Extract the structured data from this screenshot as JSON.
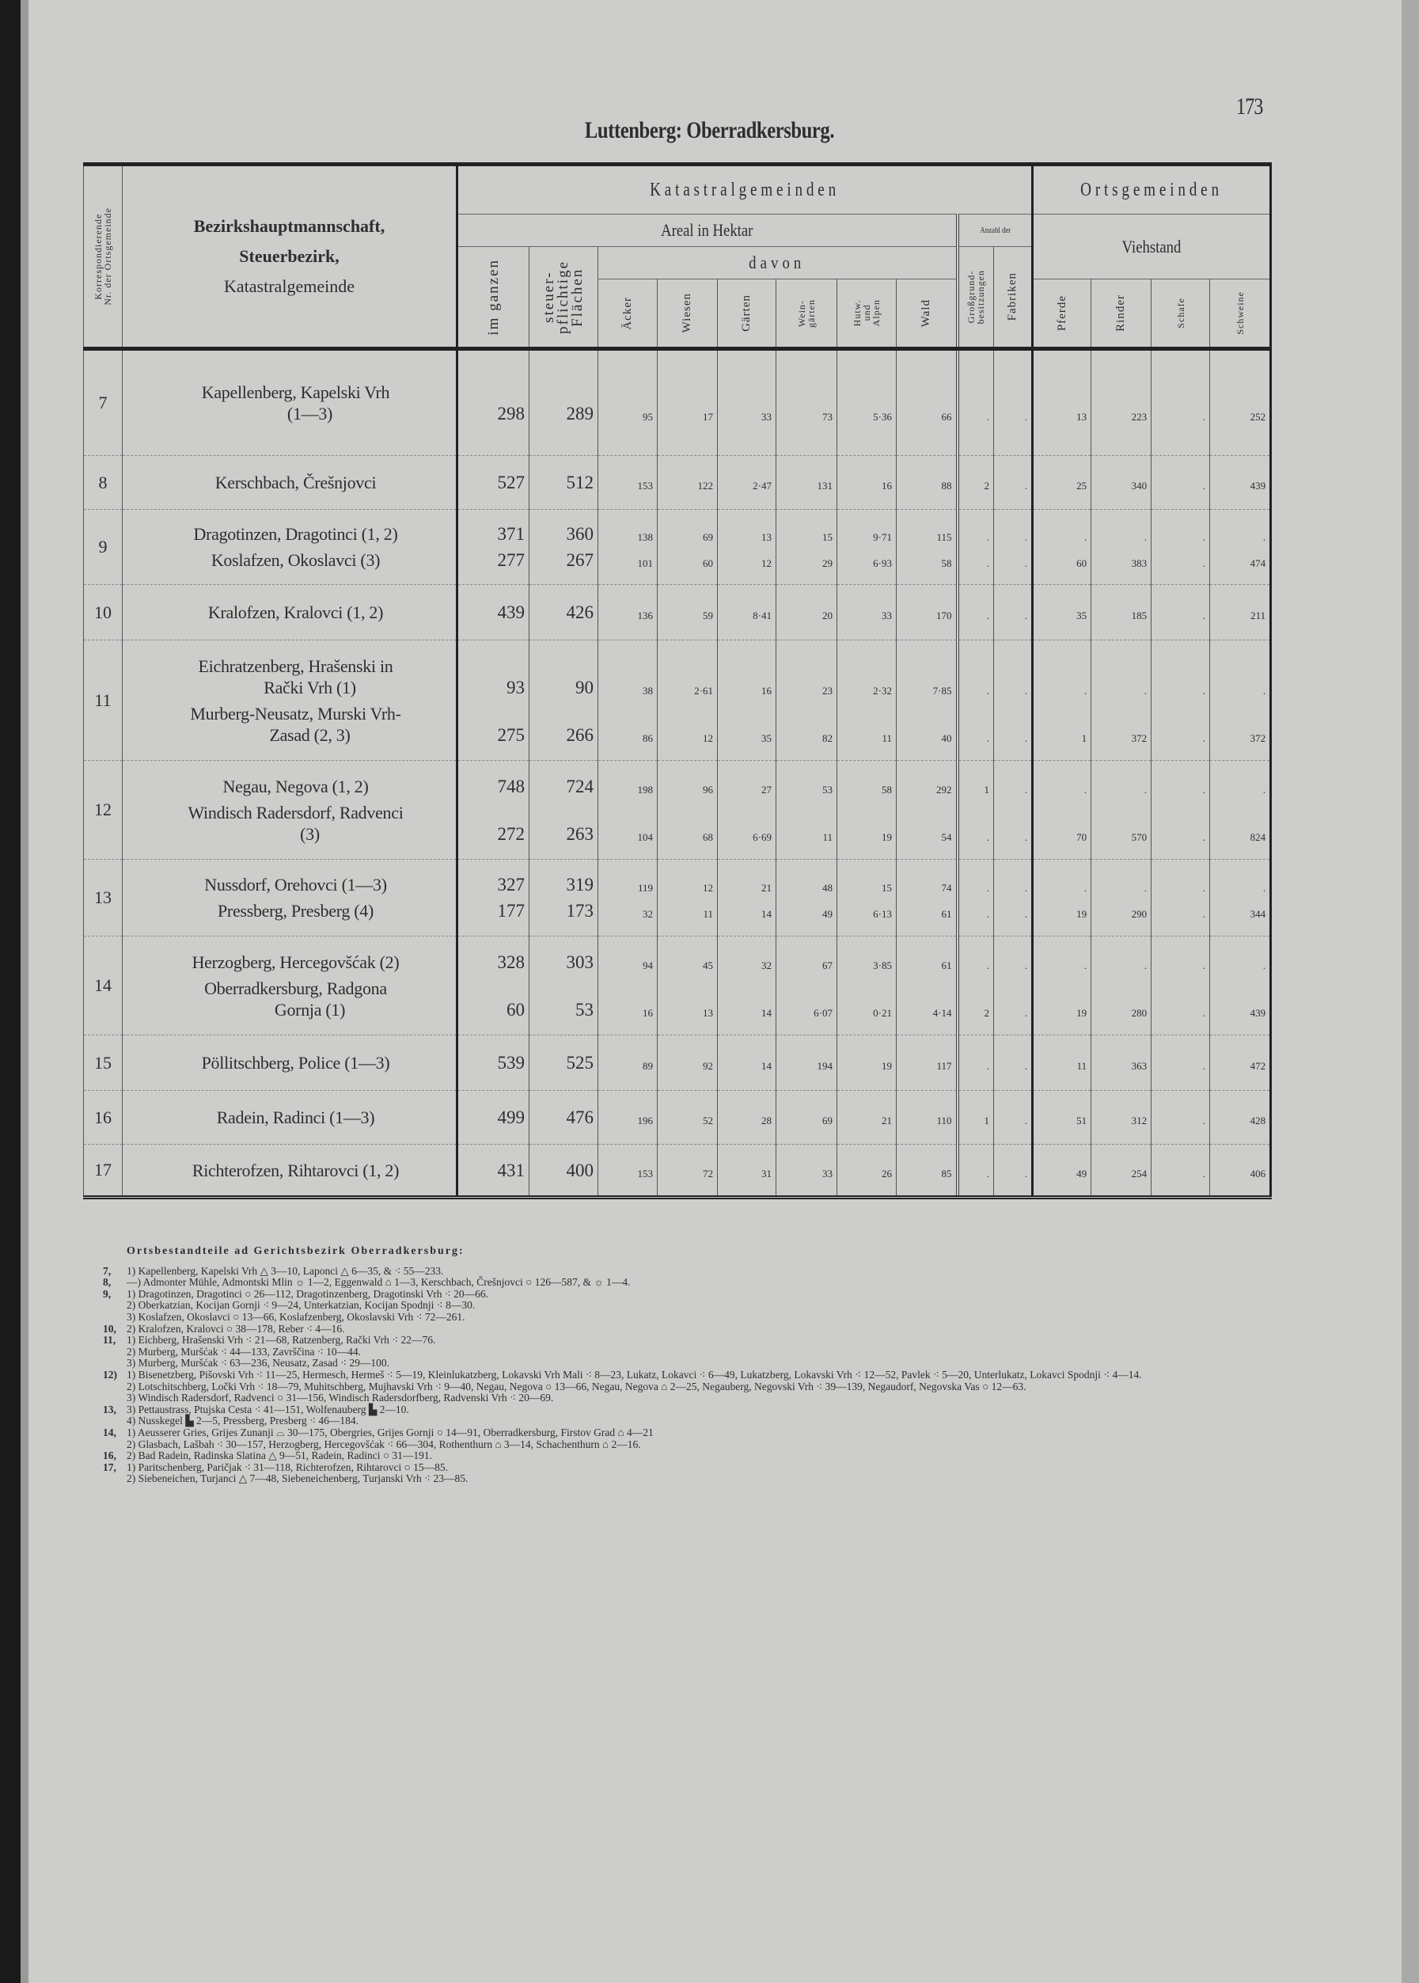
{
  "page": {
    "title": "Luttenberg: Oberradkersburg.",
    "number": "173"
  },
  "table": {
    "header": {
      "nr_col": "Korrespondierende\nNr. der Ortsgemeinde",
      "name_col": [
        "Bezirkshauptmannschaft,",
        "Steuerbezirk,",
        "Katastralgemeinde"
      ],
      "group_kat": "Katastralgemeinden",
      "group_ort": "Ortsgemeinden",
      "areal": "Areal in Hektar",
      "anzahl": "Anzahl der",
      "davon": "davon",
      "viehstand": "Viehstand",
      "columns": [
        "im ganzen",
        "steuer-\npflichtige\nFlächen",
        "Äcker",
        "Wiesen",
        "Gärten",
        "Wein-\ngärten",
        "Hutw.\nund\nAlpen",
        "Wald",
        "Großgrund-\nbesitzungen",
        "Fabriken",
        "Pferde",
        "Rinder",
        "Schafe",
        "Schweine"
      ]
    },
    "rows": [
      {
        "nr": "7",
        "entries": [
          {
            "name_lines": [
              "Kapellenberg, Kapelski Vrh",
              "(1—3)"
            ],
            "values": [
              "298",
              "289",
              "95",
              "17",
              "33",
              "73",
              "5·36",
              "66",
              ".",
              ".",
              "13",
              "223",
              ".",
              "252"
            ]
          }
        ]
      },
      {
        "nr": "8",
        "entries": [
          {
            "name_lines": [
              "Kerschbach, Črešnjovci"
            ],
            "values": [
              "527",
              "512",
              "153",
              "122",
              "2·47",
              "131",
              "16",
              "88",
              "2",
              ".",
              "25",
              "340",
              ".",
              "439"
            ]
          }
        ]
      },
      {
        "nr": "9",
        "entries": [
          {
            "name_lines": [
              "Dragotinzen, Dragotinci (1, 2)"
            ],
            "values": [
              "371",
              "360",
              "138",
              "69",
              "13",
              "15",
              "9·71",
              "115",
              ".",
              ".",
              ".",
              ".",
              ".",
              "."
            ]
          },
          {
            "name_lines": [
              "Koslafzen, Okoslavci (3)"
            ],
            "values": [
              "277",
              "267",
              "101",
              "60",
              "12",
              "29",
              "6·93",
              "58",
              ".",
              ".",
              "60",
              "383",
              ".",
              "474"
            ]
          }
        ]
      },
      {
        "nr": "10",
        "entries": [
          {
            "name_lines": [
              "Kralofzen, Kralovci (1, 2)"
            ],
            "values": [
              "439",
              "426",
              "136",
              "59",
              "8·41",
              "20",
              "33",
              "170",
              ".",
              ".",
              "35",
              "185",
              ".",
              "211"
            ]
          }
        ]
      },
      {
        "nr": "11",
        "entries": [
          {
            "name_lines": [
              "Eichratzenberg, Hrašenski in",
              "Rački Vrh (1)"
            ],
            "values": [
              "93",
              "90",
              "38",
              "2·61",
              "16",
              "23",
              "2·32",
              "7·85",
              ".",
              ".",
              ".",
              ".",
              ".",
              "."
            ]
          },
          {
            "name_lines": [
              "Murberg-Neusatz, Murski Vrh-",
              "Zasad (2, 3)"
            ],
            "values": [
              "275",
              "266",
              "86",
              "12",
              "35",
              "82",
              "11",
              "40",
              ".",
              ".",
              "1",
              "372",
              ".",
              "372"
            ]
          }
        ]
      },
      {
        "nr": "12",
        "entries": [
          {
            "name_lines": [
              "Negau, Negova (1, 2)"
            ],
            "values": [
              "748",
              "724",
              "198",
              "96",
              "27",
              "53",
              "58",
              "292",
              "1",
              ".",
              ".",
              ".",
              ".",
              "."
            ]
          },
          {
            "name_lines": [
              "Windisch Radersdorf, Radvenci",
              "(3)"
            ],
            "values": [
              "272",
              "263",
              "104",
              "68",
              "6·69",
              "11",
              "19",
              "54",
              ".",
              ".",
              "70",
              "570",
              ".",
              "824"
            ]
          }
        ]
      },
      {
        "nr": "13",
        "entries": [
          {
            "name_lines": [
              "Nussdorf, Orehovci (1—3)"
            ],
            "values": [
              "327",
              "319",
              "119",
              "12",
              "21",
              "48",
              "15",
              "74",
              ".",
              ".",
              ".",
              ".",
              ".",
              "."
            ]
          },
          {
            "name_lines": [
              "Pressberg, Presberg (4)"
            ],
            "values": [
              "177",
              "173",
              "32",
              "11",
              "14",
              "49",
              "6·13",
              "61",
              ".",
              ".",
              "19",
              "290",
              ".",
              "344"
            ]
          }
        ]
      },
      {
        "nr": "14",
        "entries": [
          {
            "name_lines": [
              "Herzogberg, Hercegovšćak (2)"
            ],
            "values": [
              "328",
              "303",
              "94",
              "45",
              "32",
              "67",
              "3·85",
              "61",
              ".",
              ".",
              ".",
              ".",
              ".",
              "."
            ]
          },
          {
            "name_lines": [
              "Oberradkersburg, Radgona",
              "Gornja (1)"
            ],
            "values": [
              "60",
              "53",
              "16",
              "13",
              "14",
              "6·07",
              "0·21",
              "4·14",
              "2",
              ".",
              "19",
              "280",
              ".",
              "439"
            ]
          }
        ]
      },
      {
        "nr": "15",
        "entries": [
          {
            "name_lines": [
              "Pöllitschberg, Police (1—3)"
            ],
            "values": [
              "539",
              "525",
              "89",
              "92",
              "14",
              "194",
              "19",
              "117",
              ".",
              ".",
              "11",
              "363",
              ".",
              "472"
            ]
          }
        ]
      },
      {
        "nr": "16",
        "entries": [
          {
            "name_lines": [
              "Radein, Radinci (1—3)"
            ],
            "values": [
              "499",
              "476",
              "196",
              "52",
              "28",
              "69",
              "21",
              "110",
              "1",
              ".",
              "51",
              "312",
              ".",
              "428"
            ]
          }
        ]
      },
      {
        "nr": "17",
        "entries": [
          {
            "name_lines": [
              "Richterofzen, Rihtarovci (1, 2)"
            ],
            "values": [
              "431",
              "400",
              "153",
              "72",
              "31",
              "33",
              "26",
              "85",
              ".",
              ".",
              "49",
              "254",
              ".",
              "406"
            ]
          }
        ]
      }
    ]
  },
  "footnotes": {
    "heading": "Ortsbestandteile ad Gerichtsbezirk Oberradkersburg:",
    "groups": [
      {
        "num": "7,",
        "items": [
          "1) Kapellenberg, Kapelski Vrh △ 3—10, Laponci △ 6—35, & ⁖ 55—233."
        ]
      },
      {
        "num": "8,",
        "items": [
          "—) Admonter Mühle, Admontski Mlin ☼ 1—2, Eggenwald ⌂ 1—3, Kerschbach, Črešnjovci ○ 126—587, & ☼ 1—4."
        ]
      },
      {
        "num": "9,",
        "items": [
          "1) Dragotinzen, Dragotinci ○ 26—112, Dragotinzenberg, Dragotinski Vrh ⁖ 20—66.",
          "2) Oberkatzian, Kocijan Gornji ⁖ 9—24, Unterkatzian, Kocijan Spodnji ⁖ 8—30.",
          "3) Koslafzen, Okoslavci ○ 13—66, Koslafzenberg, Okoslavski Vrh ⁖ 72—261."
        ]
      },
      {
        "num": "10,",
        "items": [
          "2) Kralofzen, Kralovci ○ 38—178, Reber ⁖ 4—16."
        ]
      },
      {
        "num": "11,",
        "items": [
          "1) Eichberg, Hrašenski Vrh ⁖ 21—68, Ratzenberg, Rački Vrh ⁖ 22—76.",
          "2) Murberg, Muršćak ⁖ 44—133, Završčina ⁖ 10—44.",
          "3) Murberg, Muršćak ⁖ 63—236, Neusatz, Zasad ⁖ 29—100."
        ]
      },
      {
        "num": "12)",
        "items": [
          "1) Bisenetzberg, Pišovski Vrh ⁖ 11—25, Hermesch, Hermeš ⁖ 5—19, Kleinlukatzberg, Lokavski Vrh Mali ⁖ 8—23, Lukatz, Lokavci ⁖ 6—49, Lukatzberg, Lokavski Vrh ⁖ 12—52, Pavlek ⁖ 5—20, Unterlukatz, Lokavci Spodnji ⁖ 4—14.",
          "2) Lotschitschberg, Ločki Vrh ⁖ 18—79, Muhitschberg, Mujhavski Vrh ⁖ 9—40, Negau, Negova ○ 13—66, Negau, Negova ⌂ 2—25, Negauberg, Negovski Vrh ⁖ 39—139, Negaudorf, Negovska Vas ○ 12—63.",
          "3) Windisch Radersdorf, Radvenci ○ 31—156, Windisch Radersdorfberg, Radvenski Vrh ⁖ 20—69."
        ]
      },
      {
        "num": "13,",
        "items": [
          "3) Pettaustrass, Ptujska Cesta ⁖ 41—151, Wolfenauberg ▙ 2—10.",
          "4) Nusskegel ▙ 2—5, Pressberg, Presberg ⁖ 46—184."
        ]
      },
      {
        "num": "14,",
        "items": [
          "1) Aeusserer Gries, Grijes Zunanji ⌓ 30—175, Obergries, Grijes Gornji ○ 14—91, Oberradkersburg, Firstov Grad ⌂ 4—21",
          "2) Glasbach, Lašbah ⁖ 30—157, Herzogberg, Hercegovšćak ⁖ 66—304, Rothenthurn ⌂ 3—14, Schachenthurn ⌂ 2—16."
        ]
      },
      {
        "num": "16,",
        "items": [
          "2) Bad Radein, Radinska Slatina △ 9—51, Radein, Radinci ○ 31—191."
        ]
      },
      {
        "num": "17,",
        "items": [
          "1) Paritschenberg, Paričjak ⁖ 31—118, Richterofzen, Rihtarovci ○ 15—85.",
          "2) Siebeneichen, Turjanci △ 7—48, Siebeneichenberg, Turjanski Vrh ⁖ 23—85."
        ]
      }
    ]
  }
}
